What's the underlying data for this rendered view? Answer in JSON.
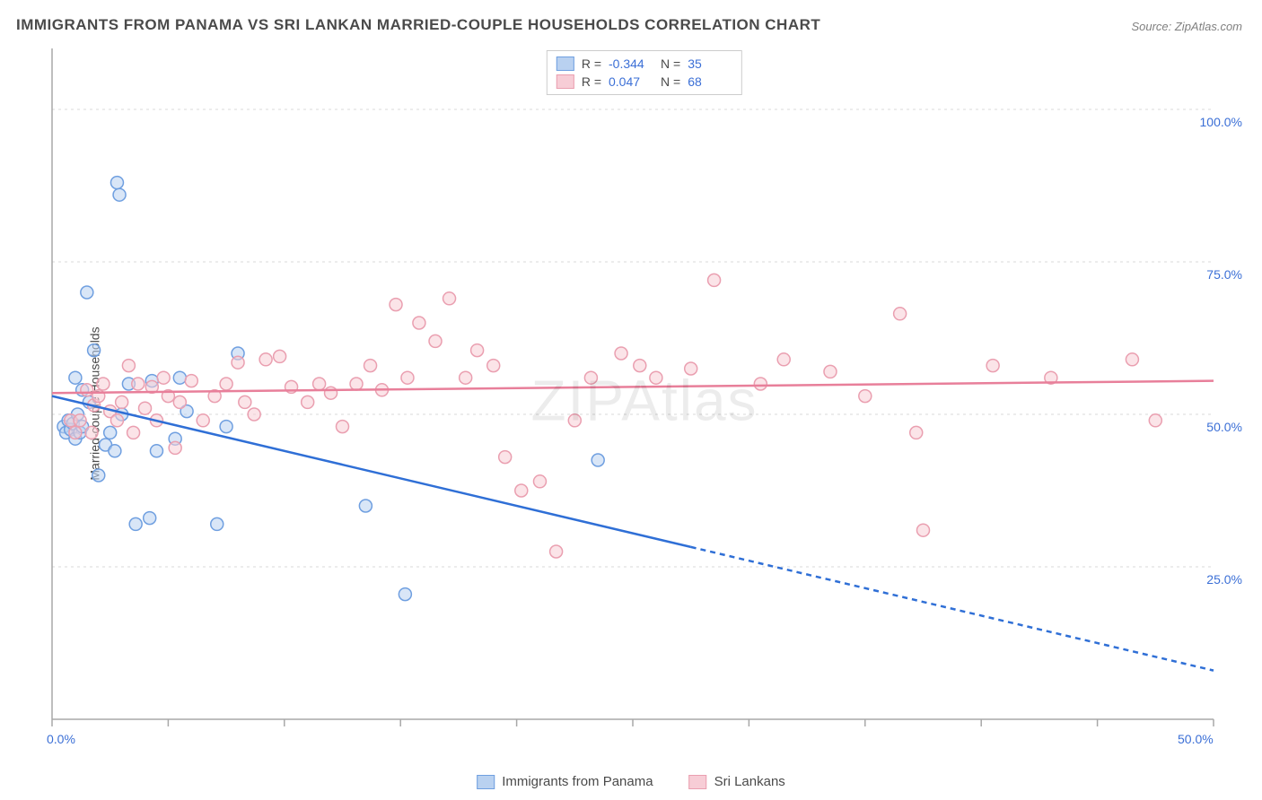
{
  "title": "IMMIGRANTS FROM PANAMA VS SRI LANKAN MARRIED-COUPLE HOUSEHOLDS CORRELATION CHART",
  "source": "Source: ZipAtlas.com",
  "watermark": "ZIPAtlas",
  "y_axis_label": "Married-couple Households",
  "chart": {
    "type": "scatter",
    "xlim": [
      0,
      50
    ],
    "ylim": [
      0,
      110
    ],
    "x_ticks": [
      0,
      5,
      10,
      15,
      20,
      25,
      30,
      35,
      40,
      45,
      50
    ],
    "x_tick_labels": {
      "0": "0.0%",
      "50": "50.0%"
    },
    "y_gridlines": [
      25,
      50,
      75,
      100
    ],
    "y_tick_labels": {
      "25": "25.0%",
      "50": "50.0%",
      "75": "75.0%",
      "100": "100.0%"
    },
    "grid_color": "#d8d8d8",
    "axis_color": "#a8a8a8",
    "background_color": "#ffffff",
    "marker_radius": 7,
    "series": [
      {
        "name": "Immigrants from Panama",
        "fill_color": "#b9d1f0",
        "stroke_color": "#6f9fe0",
        "fill_opacity": 0.55,
        "R": "-0.344",
        "N": "35",
        "trend": {
          "color": "#2f6fd6",
          "width": 2.5,
          "x1": 0,
          "y1": 53,
          "x2": 50,
          "y2": 8,
          "solid_until_x": 27.5
        },
        "points": [
          [
            0.5,
            48
          ],
          [
            0.6,
            47
          ],
          [
            0.7,
            49
          ],
          [
            0.8,
            47.5
          ],
          [
            0.9,
            48.5
          ],
          [
            1.0,
            46
          ],
          [
            1.1,
            50
          ],
          [
            1.2,
            47
          ],
          [
            1.3,
            48
          ],
          [
            1.0,
            56
          ],
          [
            1.3,
            54
          ],
          [
            1.5,
            70
          ],
          [
            1.6,
            52
          ],
          [
            1.8,
            60.5
          ],
          [
            2.0,
            40
          ],
          [
            2.3,
            45
          ],
          [
            2.5,
            47
          ],
          [
            2.7,
            44
          ],
          [
            2.8,
            88
          ],
          [
            2.9,
            86
          ],
          [
            3.0,
            50
          ],
          [
            3.3,
            55
          ],
          [
            3.6,
            32
          ],
          [
            4.2,
            33
          ],
          [
            4.3,
            55.5
          ],
          [
            4.5,
            44
          ],
          [
            5.3,
            46
          ],
          [
            5.5,
            56
          ],
          [
            5.8,
            50.5
          ],
          [
            7.1,
            32
          ],
          [
            7.5,
            48
          ],
          [
            8.0,
            60
          ],
          [
            13.5,
            35
          ],
          [
            15.2,
            20.5
          ],
          [
            23.5,
            42.5
          ]
        ]
      },
      {
        "name": "Sri Lankans",
        "fill_color": "#f7cdd6",
        "stroke_color": "#ea9fb0",
        "fill_opacity": 0.55,
        "R": "0.047",
        "N": "68",
        "trend": {
          "color": "#e87f9a",
          "width": 2.5,
          "x1": 0,
          "y1": 53.5,
          "x2": 50,
          "y2": 55.5,
          "solid_until_x": 50
        },
        "points": [
          [
            0.8,
            49
          ],
          [
            1.0,
            47
          ],
          [
            1.2,
            49
          ],
          [
            1.5,
            54
          ],
          [
            1.7,
            47
          ],
          [
            1.8,
            51.5
          ],
          [
            2.0,
            53
          ],
          [
            2.2,
            55
          ],
          [
            2.5,
            50.5
          ],
          [
            2.8,
            49
          ],
          [
            3.0,
            52
          ],
          [
            3.3,
            58
          ],
          [
            3.5,
            47
          ],
          [
            3.7,
            55
          ],
          [
            4.0,
            51
          ],
          [
            4.3,
            54.5
          ],
          [
            4.5,
            49
          ],
          [
            4.8,
            56
          ],
          [
            5.0,
            53
          ],
          [
            5.3,
            44.5
          ],
          [
            5.5,
            52
          ],
          [
            6.0,
            55.5
          ],
          [
            6.5,
            49
          ],
          [
            7.0,
            53
          ],
          [
            7.5,
            55
          ],
          [
            8.0,
            58.5
          ],
          [
            8.3,
            52
          ],
          [
            8.7,
            50
          ],
          [
            9.2,
            59
          ],
          [
            9.8,
            59.5
          ],
          [
            10.3,
            54.5
          ],
          [
            11.0,
            52
          ],
          [
            11.5,
            55
          ],
          [
            12.0,
            53.5
          ],
          [
            12.5,
            48
          ],
          [
            13.1,
            55
          ],
          [
            13.7,
            58
          ],
          [
            14.2,
            54
          ],
          [
            14.8,
            68
          ],
          [
            15.3,
            56
          ],
          [
            15.8,
            65
          ],
          [
            16.5,
            62
          ],
          [
            17.1,
            69
          ],
          [
            17.8,
            56
          ],
          [
            18.3,
            60.5
          ],
          [
            19.0,
            58
          ],
          [
            19.5,
            43
          ],
          [
            20.2,
            37.5
          ],
          [
            21.0,
            39
          ],
          [
            21.7,
            27.5
          ],
          [
            22.5,
            49
          ],
          [
            23.2,
            56
          ],
          [
            24.5,
            60
          ],
          [
            25.3,
            58
          ],
          [
            26.0,
            56
          ],
          [
            27.5,
            57.5
          ],
          [
            28.5,
            72
          ],
          [
            30.5,
            55
          ],
          [
            31.5,
            59
          ],
          [
            33.5,
            57
          ],
          [
            35.0,
            53
          ],
          [
            36.5,
            66.5
          ],
          [
            37.2,
            47
          ],
          [
            37.5,
            31
          ],
          [
            40.5,
            58
          ],
          [
            43.0,
            56
          ],
          [
            46.5,
            59
          ],
          [
            47.5,
            49
          ]
        ]
      }
    ]
  },
  "legend_top": [
    {
      "swatch_fill": "#b9d1f0",
      "swatch_stroke": "#6f9fe0",
      "R_label": "R =",
      "R": "-0.344",
      "N_label": "N =",
      "N": "35"
    },
    {
      "swatch_fill": "#f7cdd6",
      "swatch_stroke": "#ea9fb0",
      "R_label": "R =",
      "R": "0.047",
      "N_label": "N =",
      "N": "68"
    }
  ],
  "legend_bottom": [
    {
      "swatch_fill": "#b9d1f0",
      "swatch_stroke": "#6f9fe0",
      "label": "Immigrants from Panama"
    },
    {
      "swatch_fill": "#f7cdd6",
      "swatch_stroke": "#ea9fb0",
      "label": "Sri Lankans"
    }
  ]
}
